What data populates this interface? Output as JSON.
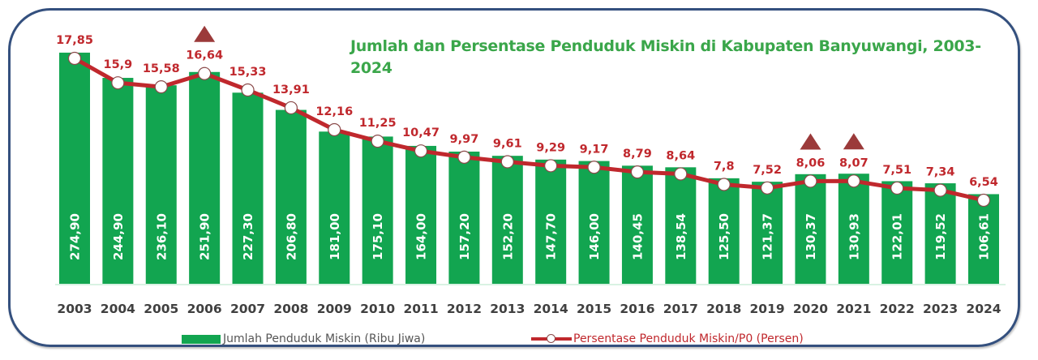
{
  "chart_data": {
    "type": "bar",
    "title": "Jumlah dan Persentase Penduduk Miskin di Kabupaten Banyuwangi, 2003-2024",
    "xlabel": "",
    "ylabel": "",
    "categories": [
      "2003",
      "2004",
      "2005",
      "2006",
      "2007",
      "2008",
      "2009",
      "2010",
      "2011",
      "2012",
      "2013",
      "2014",
      "2015",
      "2016",
      "2017",
      "2018",
      "2019",
      "2020",
      "2021",
      "2022",
      "2023",
      "2024"
    ],
    "series": [
      {
        "name": "Jumlah Penduduk Miskin (Ribu Jiwa)",
        "type": "bar",
        "color": "#12a550",
        "values": [
          274.9,
          244.9,
          236.1,
          251.9,
          227.3,
          206.8,
          181.0,
          175.1,
          164.0,
          157.2,
          152.2,
          147.7,
          146.0,
          140.45,
          138.54,
          125.5,
          121.37,
          130.37,
          130.93,
          122.01,
          119.52,
          106.61
        ],
        "labels": [
          "274,90",
          "244,90",
          "236,10",
          "251,90",
          "227,30",
          "206,80",
          "181,00",
          "175,10",
          "164,00",
          "157,20",
          "152,20",
          "147,70",
          "146,00",
          "140,45",
          "138,54",
          "125,50",
          "121,37",
          "130,37",
          "130,93",
          "122,01",
          "119,52",
          "106,61"
        ]
      },
      {
        "name": "Persentase Penduduk Miskin/P0 (Persen)",
        "type": "line",
        "color": "#c0282d",
        "values": [
          17.85,
          15.9,
          15.58,
          16.64,
          15.33,
          13.91,
          12.16,
          11.25,
          10.47,
          9.97,
          9.61,
          9.29,
          9.17,
          8.79,
          8.64,
          7.8,
          7.52,
          8.06,
          8.07,
          7.51,
          7.34,
          6.54
        ],
        "labels": [
          "17,85",
          "15,9",
          "15,58",
          "16,64",
          "15,33",
          "13,91",
          "12,16",
          "11,25",
          "10,47",
          "9,97",
          "9,61",
          "9,29",
          "9,17",
          "8,79",
          "8,64",
          "7,8",
          "7,52",
          "8,06",
          "8,07",
          "7,51",
          "7,34",
          "6,54"
        ]
      }
    ],
    "annotations": [
      {
        "type": "up-triangle-marker",
        "category": "2006"
      },
      {
        "type": "up-triangle-marker",
        "category": "2020"
      },
      {
        "type": "up-triangle-marker",
        "category": "2021"
      }
    ],
    "grid": false,
    "legend_position": "bottom"
  },
  "legend": {
    "bar_label": "Jumlah Penduduk Miskin (Ribu Jiwa)",
    "line_label": "Persentase Penduduk Miskin/P0 (Persen)"
  },
  "colors": {
    "bar": "#12a550",
    "line": "#c0282d",
    "line_label": "#c0282d",
    "title": "#3aa64a",
    "frame": "#34507e",
    "triangle": "#9b3a3a",
    "axis_label": "#404040"
  }
}
